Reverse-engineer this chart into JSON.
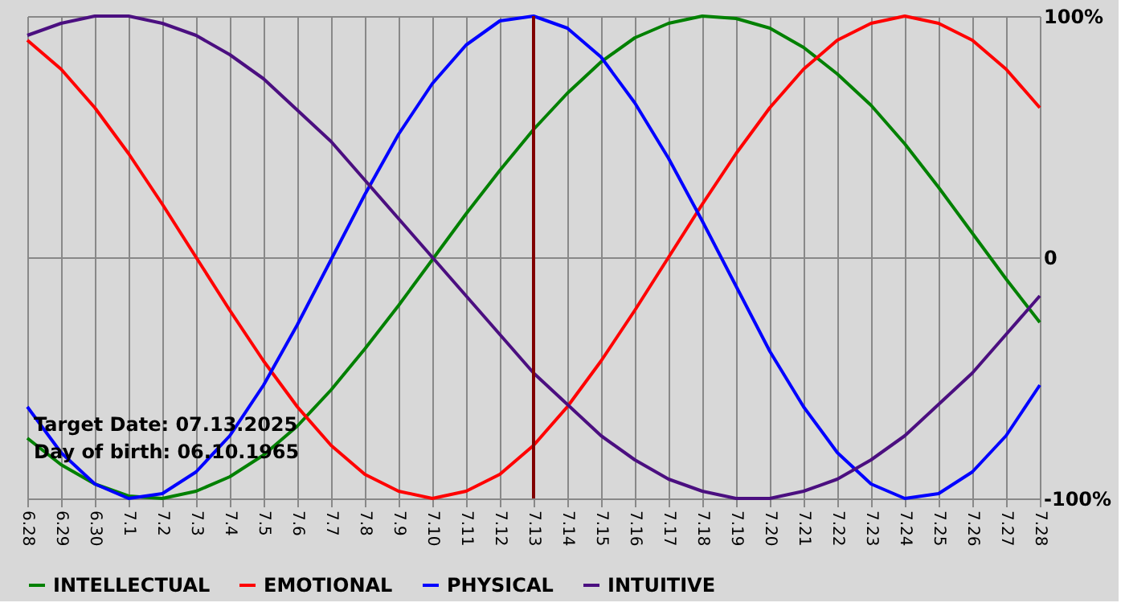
{
  "chart_data": {
    "type": "line",
    "categories": [
      "6.28",
      "6.29",
      "6.30",
      "7.1",
      "7.2",
      "7.3",
      "7.4",
      "7.5",
      "7.6",
      "7.7",
      "7.8",
      "7.9",
      "7.10",
      "7.11",
      "7.12",
      "7.13",
      "7.14",
      "7.15",
      "7.16",
      "7.17",
      "7.18",
      "7.19",
      "7.20",
      "7.21",
      "7.22",
      "7.23",
      "7.24",
      "7.25",
      "7.26",
      "7.27",
      "7.28"
    ],
    "series": [
      {
        "name": "INTELLECTUAL",
        "color": "#008000",
        "values": [
          -75,
          -86,
          -94,
          -99,
          -100,
          -97,
          -91,
          -82,
          -70,
          -55,
          -38,
          -20,
          -1,
          18,
          36,
          53,
          68,
          81,
          91,
          97,
          100,
          99,
          95,
          87,
          76,
          63,
          47,
          29,
          10,
          -9,
          -27
        ]
      },
      {
        "name": "EMOTIONAL",
        "color": "#ff0000",
        "values": [
          90,
          78,
          62,
          43,
          22,
          0,
          -22,
          -43,
          -62,
          -78,
          -90,
          -97,
          -100,
          -97,
          -90,
          -78,
          -62,
          -43,
          -22,
          0,
          22,
          43,
          62,
          78,
          90,
          97,
          100,
          97,
          90,
          78,
          62
        ]
      },
      {
        "name": "PHYSICAL",
        "color": "#0000ff",
        "values": [
          -62,
          -81,
          -94,
          -100,
          -98,
          -89,
          -74,
          -53,
          -28,
          -1,
          26,
          51,
          72,
          88,
          98,
          100,
          95,
          83,
          64,
          41,
          15,
          -12,
          -39,
          -62,
          -81,
          -94,
          -100,
          -98,
          -89,
          -74,
          -53
        ]
      },
      {
        "name": "INTUITIVE",
        "color": "#4b0f80",
        "values": [
          92,
          97,
          100,
          100,
          97,
          92,
          84,
          74,
          61,
          48,
          32,
          16,
          0,
          -16,
          -32,
          -48,
          -61,
          -74,
          -84,
          -92,
          -97,
          -100,
          -100,
          -97,
          -92,
          -84,
          -74,
          -61,
          -48,
          -32,
          -16
        ]
      }
    ],
    "ylim": [
      -100,
      100
    ],
    "yticks": [
      {
        "value": -100,
        "label": "-100%"
      },
      0,
      {
        "value": 100,
        "label": "100%"
      }
    ],
    "ref_lines": [
      {
        "axis": "x",
        "value": "7.13",
        "color": "#800000"
      }
    ],
    "annotations": [
      "Target Date: 07.13.2025",
      "Day of birth: 06.10.1965"
    ],
    "grid": true,
    "legend": "bottom",
    "marker": "none",
    "line_style": "solid"
  }
}
